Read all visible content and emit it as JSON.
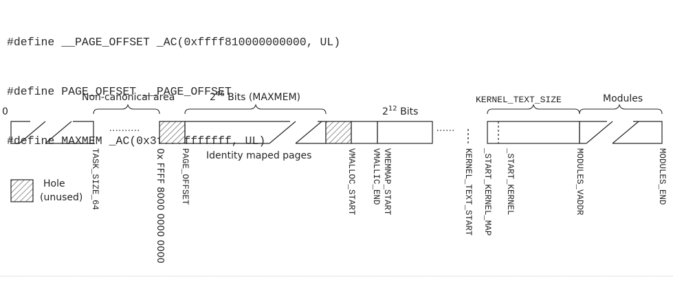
{
  "code_lines": [
    "#define __PAGE_OFFSET _AC(0xffff810000000000, UL)",
    "#define PAGE_OFFSET __PAGE_OFFSET",
    "#define MAXMEM _AC(0x3fffffffffff, UL)"
  ],
  "diagram": {
    "zero_label": "0",
    "non_canonical_label": "Non-canonical area",
    "maxmem_label": {
      "base": "2",
      "exp": "46",
      "rest": " Bits (MAXMEM)"
    },
    "bits12_label": {
      "base": "2",
      "exp": "12",
      "rest": "  Bits"
    },
    "kernel_text_size_label": "KERNEL_TEXT_SIZE",
    "modules_label": "Modules",
    "identity_label": "Identity maped pages",
    "legend": {
      "line1": "Hole",
      "line2": "(unused)"
    },
    "vertical_labels": {
      "task_size": "TASK_SIZE_64",
      "hex_addr": "0x FFFF 8000 0000 0000",
      "page_offset": "PAGE_OFFSET",
      "vmalloc_start": "VMALLOC_START",
      "vmallic_end": "VMALLIC_END",
      "vmemmap_start": "VMEMMAP_START",
      "kernel_text_start": "KERNEL_TEXT_START",
      "start_kernel_map": "_START_KERNEL_MAP",
      "start_kernel": "_START_KERNEL",
      "modules_vaddr": "MODULES_VADDR",
      "modules_end": "MODULES_END"
    }
  }
}
